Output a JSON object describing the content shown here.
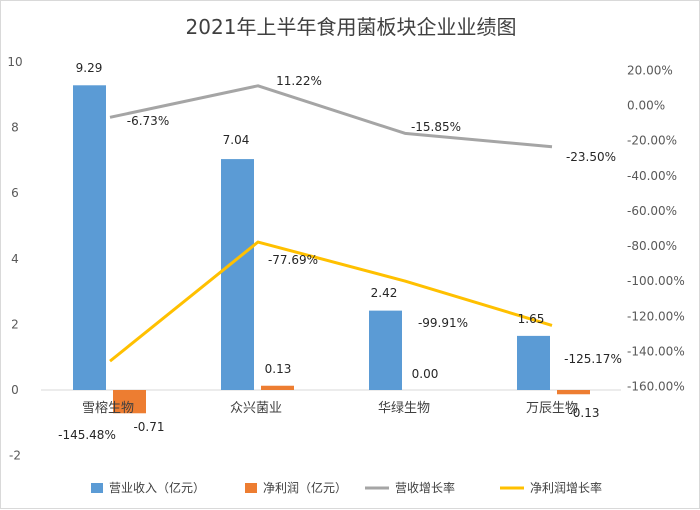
{
  "chart_data": {
    "type": "bar",
    "title": "2021年上半年食用菌板块企业业绩图",
    "categories": [
      "雪榕生物",
      "众兴菌业",
      "华绿生物",
      "万辰生物"
    ],
    "series": [
      {
        "name": "营业收入（亿元）",
        "type": "bar",
        "axis": "left",
        "color": "#5b9bd5",
        "values": [
          9.29,
          7.04,
          2.42,
          1.65
        ],
        "labels": [
          "9.29",
          "7.04",
          "2.42",
          "1.65"
        ]
      },
      {
        "name": "净利润（亿元）",
        "type": "bar",
        "axis": "left",
        "color": "#ed7d31",
        "values": [
          -0.71,
          0.13,
          0.0,
          -0.13
        ],
        "labels": [
          "-0.71",
          "0.13",
          "0.00",
          "-0.13"
        ]
      },
      {
        "name": "营收增长率",
        "type": "line",
        "axis": "right",
        "color": "#a5a5a5",
        "values": [
          -6.73,
          11.22,
          -15.85,
          -23.5
        ],
        "labels": [
          "-6.73%",
          "11.22%",
          "-15.85%",
          "-23.50%"
        ]
      },
      {
        "name": "净利润增长率",
        "type": "line",
        "axis": "right",
        "color": "#ffc000",
        "values": [
          -145.48,
          -77.69,
          -99.91,
          -125.17
        ],
        "labels": [
          "-145.48%",
          "-77.69%",
          "-99.91%",
          "-125.17%"
        ]
      }
    ],
    "y_left": {
      "min": -2,
      "max": 10,
      "ticks": [
        "-2",
        "0",
        "2",
        "4",
        "6",
        "8",
        "10"
      ]
    },
    "y_right": {
      "min": -160,
      "max": 20,
      "ticks": [
        "-160.00%",
        "-140.00%",
        "-120.00%",
        "-100.00%",
        "-80.00%",
        "-60.00%",
        "-40.00%",
        "-20.00%",
        "0.00%",
        "20.00%"
      ]
    },
    "grid": false,
    "legend_position": "bottom"
  }
}
